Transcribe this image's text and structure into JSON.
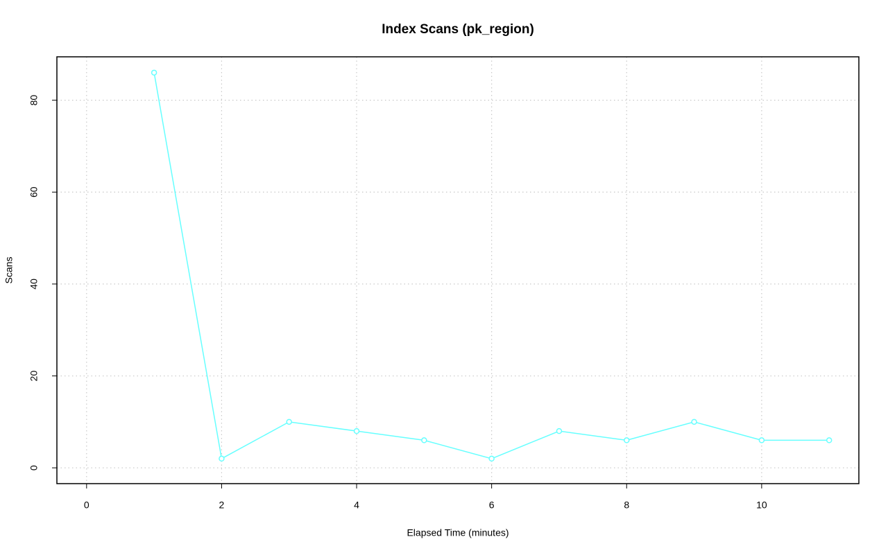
{
  "chart_data": {
    "type": "line",
    "title": "Index Scans (pk_region)",
    "x_label": "Elapsed Time (minutes)",
    "y_label": "Scans",
    "x": [
      1,
      2,
      3,
      4,
      5,
      6,
      7,
      8,
      9,
      10,
      11
    ],
    "values": [
      86,
      2,
      10,
      8,
      6,
      2,
      8,
      6,
      10,
      6,
      6
    ],
    "color": "#66ffff",
    "xlim": [
      -0.44,
      11.44
    ],
    "xticks": [
      0,
      2,
      4,
      6,
      8,
      10
    ],
    "ylim": [
      -3.44,
      89.44
    ],
    "yticks": [
      0,
      20,
      40,
      60,
      80
    ],
    "grid": true
  }
}
